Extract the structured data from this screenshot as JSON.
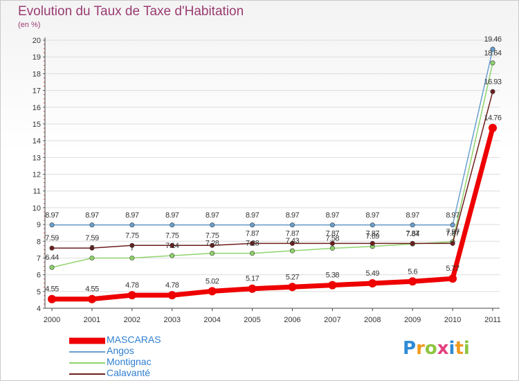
{
  "title": "Evolution du Taux de Taxe d'Habitation",
  "unit_label": "(en %)",
  "logo": {
    "letters": [
      "P",
      "r",
      "o",
      "x",
      "i",
      "t",
      "i"
    ],
    "colors": [
      "#2f8bd6",
      "#f29a1e",
      "#8ec63f",
      "#e2407f",
      "#2f8bd6",
      "#f29a1e",
      "#8ec63f"
    ]
  },
  "chart_data": {
    "type": "line",
    "title": "Evolution du Taux de Taxe d'Habitation",
    "ylabel": "(en %)",
    "xlabel": "",
    "x": [
      "2000",
      "2001",
      "2002",
      "2003",
      "2004",
      "2005",
      "2006",
      "2007",
      "2008",
      "2009",
      "2010",
      "2011"
    ],
    "ylim": [
      4,
      20
    ],
    "yticks": [
      "4",
      "5",
      "6",
      "7",
      "8",
      "9",
      "10",
      "11",
      "12",
      "13",
      "14",
      "15",
      "16",
      "17",
      "18",
      "19",
      "20"
    ],
    "grid": true,
    "series": [
      {
        "name": "MASCARAS",
        "color": "#ee0000",
        "weight": "bold",
        "values": [
          4.55,
          4.55,
          4.78,
          4.78,
          5.02,
          5.17,
          5.27,
          5.38,
          5.49,
          5.6,
          5.77,
          14.76
        ],
        "labels": [
          "4.55",
          "4.55",
          "4.78",
          "4.78",
          "5.02",
          "5.17",
          "5.27",
          "5.38",
          "5.49",
          "5.6",
          "5.77",
          "14.76"
        ]
      },
      {
        "name": "Angos",
        "color": "#6a9fcf",
        "weight": "thin",
        "values": [
          8.97,
          8.97,
          8.97,
          8.97,
          8.97,
          8.97,
          8.97,
          8.97,
          8.97,
          8.97,
          8.97,
          19.46
        ],
        "labels": [
          "8.97",
          "8.97",
          "8.97",
          "8.97",
          "8.97",
          "8.97",
          "8.97",
          "8.97",
          "8.97",
          "8.97",
          "8.97",
          "19.46"
        ]
      },
      {
        "name": "Montignac",
        "color": "#8fd46b",
        "weight": "thin",
        "values": [
          6.44,
          7.0,
          7.0,
          7.14,
          7.28,
          7.28,
          7.43,
          7.58,
          7.69,
          7.84,
          7.97,
          18.64
        ],
        "labels": [
          "6.44",
          "7",
          "7",
          "7.14",
          "7.28",
          "7.28",
          "7.43",
          "7.58",
          "7.69",
          "7.84",
          "7.97",
          "18.64"
        ]
      },
      {
        "name": "Calavanté",
        "color": "#6e1e1e",
        "weight": "thin",
        "values": [
          7.59,
          7.59,
          7.75,
          7.75,
          7.75,
          7.87,
          7.87,
          7.87,
          7.87,
          7.87,
          7.87,
          16.93
        ],
        "labels": [
          "7.59",
          "7.59",
          "7.75",
          "7.75",
          "7.75",
          "7.87",
          "7.87",
          "7.87",
          "7.87",
          "7.87",
          "7.87",
          "16.93"
        ]
      }
    ]
  }
}
